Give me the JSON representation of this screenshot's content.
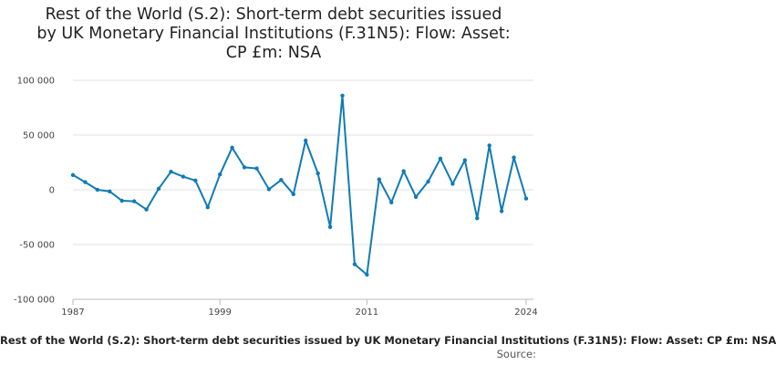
{
  "chart_data": {
    "type": "line",
    "title_lines": [
      "Rest of the World (S.2): Short-term debt securities issued",
      "by UK Monetary Financial Institutions (F.31N5): Flow: Asset:",
      "CP £m: NSA"
    ],
    "xlabel": "",
    "ylabel": "",
    "xlim": [
      1987,
      2024
    ],
    "ylim": [
      -100000,
      100000
    ],
    "x_ticks": [
      1987,
      1999,
      2011,
      2024
    ],
    "x_tick_labels": [
      "1987",
      "1999",
      "2011",
      "2024"
    ],
    "y_ticks": [
      -100000,
      -50000,
      0,
      50000,
      100000
    ],
    "y_tick_labels": [
      "-100 000",
      "-50 000",
      "0",
      "50 000",
      "100 000"
    ],
    "grid": true,
    "legend_position": "bottom",
    "series": [
      {
        "name": "Rest of the World (S.2): Short-term debt securities issued by UK Monetary Financial Institutions (F.31N5): Flow: Asset: CP £m: NSA",
        "color": "#0f7bb6",
        "x": [
          1987,
          1988,
          1989,
          1990,
          1991,
          1992,
          1993,
          1994,
          1995,
          1996,
          1997,
          1998,
          1999,
          2000,
          2001,
          2002,
          2003,
          2004,
          2005,
          2006,
          2007,
          2008,
          2009,
          2010,
          2011,
          2012,
          2013,
          2014,
          2015,
          2016,
          2017,
          2018,
          2019,
          2020,
          2021,
          2022,
          2023,
          2024
        ],
        "y": [
          13500,
          7000,
          0,
          -1500,
          -10000,
          -10500,
          -18000,
          1000,
          16500,
          12000,
          8500,
          -16000,
          14000,
          38500,
          20500,
          19500,
          500,
          9000,
          -4000,
          45000,
          15000,
          -34000,
          86000,
          -68000,
          -77500,
          9500,
          -11500,
          17000,
          -6500,
          7500,
          28500,
          5500,
          27000,
          -26000,
          40500,
          -19500,
          29500,
          -8000
        ]
      }
    ]
  },
  "legend_text": "Rest of the World (S.2): Short-term debt securities issued by UK Monetary Financial Institutions (F.31N5): Flow: Asset: CP £m: NSA",
  "source_label": "Source:"
}
